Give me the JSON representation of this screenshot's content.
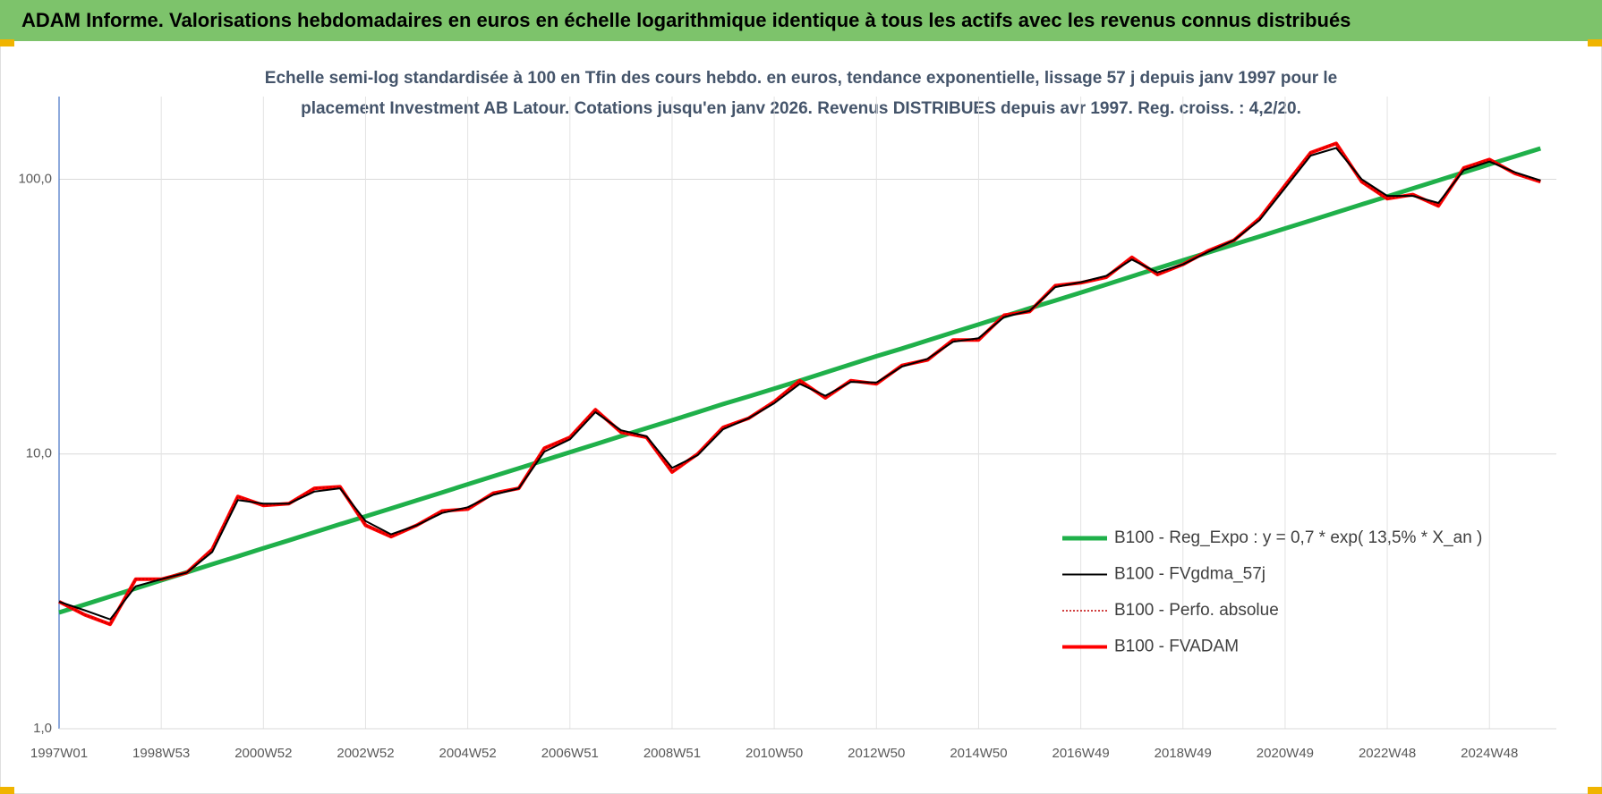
{
  "chart_data": {
    "type": "line",
    "title": "ADAM Informe. Valorisations hebdomadaires en euros en échelle logarithmique identique à tous les actifs avec les revenus connus distribués",
    "subtitle": [
      "Echelle semi-log standardisée à 100 en Tfin des cours hebdo. en euros, tendance exponentielle, lissage 57 j depuis janv 1997 pour le",
      "placement Investment AB Latour. Cotations jusqu'en janv 2026.  Revenus DISTRIBUES depuis avr 1997. Reg. croiss. : 4,2/20."
    ],
    "categories": [
      "1997W01",
      null,
      null,
      null,
      "1998W53",
      null,
      null,
      null,
      "2000W52",
      null,
      null,
      null,
      "2002W52",
      null,
      null,
      null,
      "2004W52",
      null,
      null,
      null,
      "2006W51",
      null,
      null,
      null,
      "2008W51",
      null,
      null,
      null,
      "2010W50",
      null,
      null,
      null,
      "2012W50",
      null,
      null,
      null,
      "2014W50",
      null,
      null,
      null,
      "2016W49",
      null,
      null,
      null,
      "2018W49",
      null,
      null,
      null,
      "2020W49",
      null,
      null,
      null,
      "2022W48",
      null,
      null,
      null,
      "2024W48",
      null,
      null
    ],
    "series": [
      {
        "name": "B100 - Reg_Expo : y = 0,7 * exp( 13,5% *  X_an )",
        "color": "#1fb04a",
        "style": "solid",
        "values": [
          2.65,
          2.83,
          3.03,
          3.24,
          3.47,
          3.71,
          3.97,
          4.24,
          4.54,
          4.85,
          5.19,
          5.55,
          5.93,
          6.34,
          6.78,
          7.25,
          7.76,
          8.3,
          8.87,
          9.49,
          10.15,
          10.85,
          11.61,
          12.41,
          13.27,
          14.2,
          15.2,
          16.2,
          17.3,
          18.5,
          19.8,
          21.2,
          22.7,
          24.2,
          25.9,
          27.7,
          29.6,
          31.7,
          33.9,
          36.2,
          38.7,
          41.4,
          44.3,
          47.4,
          50.7,
          54.2,
          57.9,
          61.9,
          66.2,
          70.8,
          75.7,
          81.0,
          86.6,
          92.6,
          99.0,
          105.9,
          113.3,
          121.1,
          129.5
        ]
      },
      {
        "name": "B100 - FVgdma_57j",
        "color": "#000000",
        "style": "solid",
        "values": [
          2.9,
          2.7,
          2.5,
          3.3,
          3.5,
          3.7,
          4.4,
          6.8,
          6.6,
          6.6,
          7.3,
          7.5,
          5.7,
          5.1,
          5.5,
          6.1,
          6.4,
          7.1,
          7.5,
          10.2,
          11.3,
          14.2,
          12.2,
          11.6,
          8.9,
          9.9,
          12.3,
          13.5,
          15.3,
          18.0,
          16.3,
          18.3,
          18.2,
          20.8,
          22.2,
          25.6,
          26.4,
          31.5,
          33.2,
          40.5,
          42.2,
          44.5,
          51.0,
          45.8,
          49.0,
          54.5,
          60.0,
          71.0,
          93.0,
          122.0,
          130.0,
          100.0,
          87.0,
          87.0,
          82.0,
          108.0,
          116.0,
          106.0,
          99.0
        ]
      },
      {
        "name": "B100 - Perfo. absolue",
        "color": "#c00000",
        "style": "dotted",
        "values": [
          2.9,
          2.6,
          2.4,
          3.5,
          3.5,
          3.7,
          4.5,
          7.0,
          6.5,
          6.6,
          7.5,
          7.6,
          5.5,
          5.0,
          5.5,
          6.2,
          6.3,
          7.2,
          7.5,
          10.5,
          11.5,
          14.5,
          12,
          11.5,
          8.6,
          10.0,
          12.5,
          13.5,
          15.5,
          18.5,
          16,
          18.5,
          18,
          21,
          22,
          26,
          26,
          32,
          33,
          41,
          42,
          44,
          52,
          45,
          49,
          55,
          60,
          72,
          95,
          125,
          135,
          98,
          85,
          88,
          80,
          110,
          118,
          105,
          98
        ]
      },
      {
        "name": "B100 - FVADAM",
        "color": "#ff0000",
        "style": "solid",
        "values": [
          2.9,
          2.6,
          2.4,
          3.5,
          3.5,
          3.7,
          4.5,
          7.0,
          6.5,
          6.6,
          7.5,
          7.6,
          5.5,
          5.0,
          5.5,
          6.2,
          6.3,
          7.2,
          7.5,
          10.5,
          11.5,
          14.5,
          12,
          11.5,
          8.6,
          10.0,
          12.5,
          13.5,
          15.5,
          18.5,
          16,
          18.5,
          18,
          21,
          22,
          26,
          26,
          32,
          33,
          41,
          42,
          44,
          52,
          45,
          49,
          55,
          60,
          72,
          95,
          125,
          135,
          98,
          85,
          88,
          80,
          110,
          118,
          105,
          98
        ]
      }
    ],
    "log_scale": true,
    "ylim": [
      1,
      200
    ],
    "yticks": [
      {
        "value": 1,
        "label": "1,0"
      },
      {
        "value": 10,
        "label": "10,0"
      },
      {
        "value": 100,
        "label": "100,0"
      }
    ],
    "grid": true,
    "legend": "lower right",
    "banner_color": "#7dc36b"
  }
}
